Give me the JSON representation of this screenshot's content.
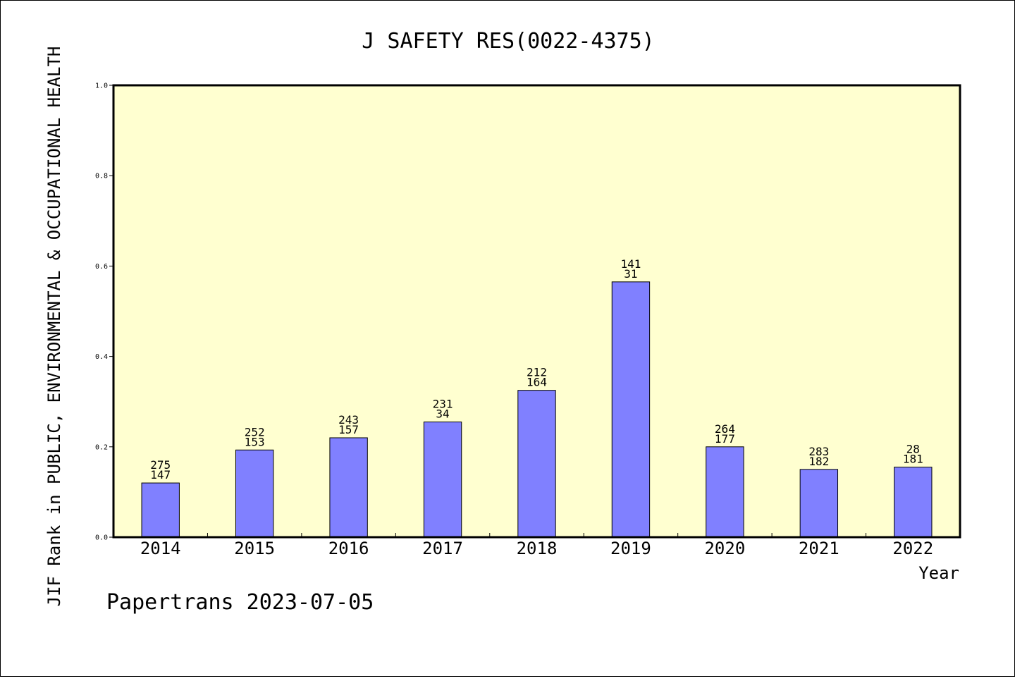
{
  "chart_data": {
    "type": "bar",
    "title": "J SAFETY RES(0022-4375)",
    "xlabel": "Year",
    "ylabel": "JIF Rank in PUBLIC, ENVIRONMENTAL & OCCUPATIONAL HEALTH",
    "footer": "Papertrans 2023-07-05",
    "ylim": [
      0,
      1.0
    ],
    "yticks": [
      "0.0",
      "0.2",
      "0.4",
      "0.6",
      "0.8",
      "1.0"
    ],
    "grid": false,
    "categories": [
      "2014",
      "2015",
      "2016",
      "2017",
      "2018",
      "2019",
      "2020",
      "2021",
      "2022"
    ],
    "values": [
      0.12,
      0.193,
      0.22,
      0.255,
      0.325,
      0.565,
      0.2,
      0.15,
      0.155
    ],
    "labels_top": [
      "275",
      "252",
      "243",
      "231",
      "212",
      "141",
      "264",
      "283",
      "28"
    ],
    "labels_bottom": [
      "147",
      "153",
      "157",
      "34",
      "164",
      "31",
      "177",
      "182",
      "181"
    ],
    "colors": {
      "plot_background": "#ffffd0",
      "bar": "#8080ff",
      "axis": "#000000"
    }
  }
}
